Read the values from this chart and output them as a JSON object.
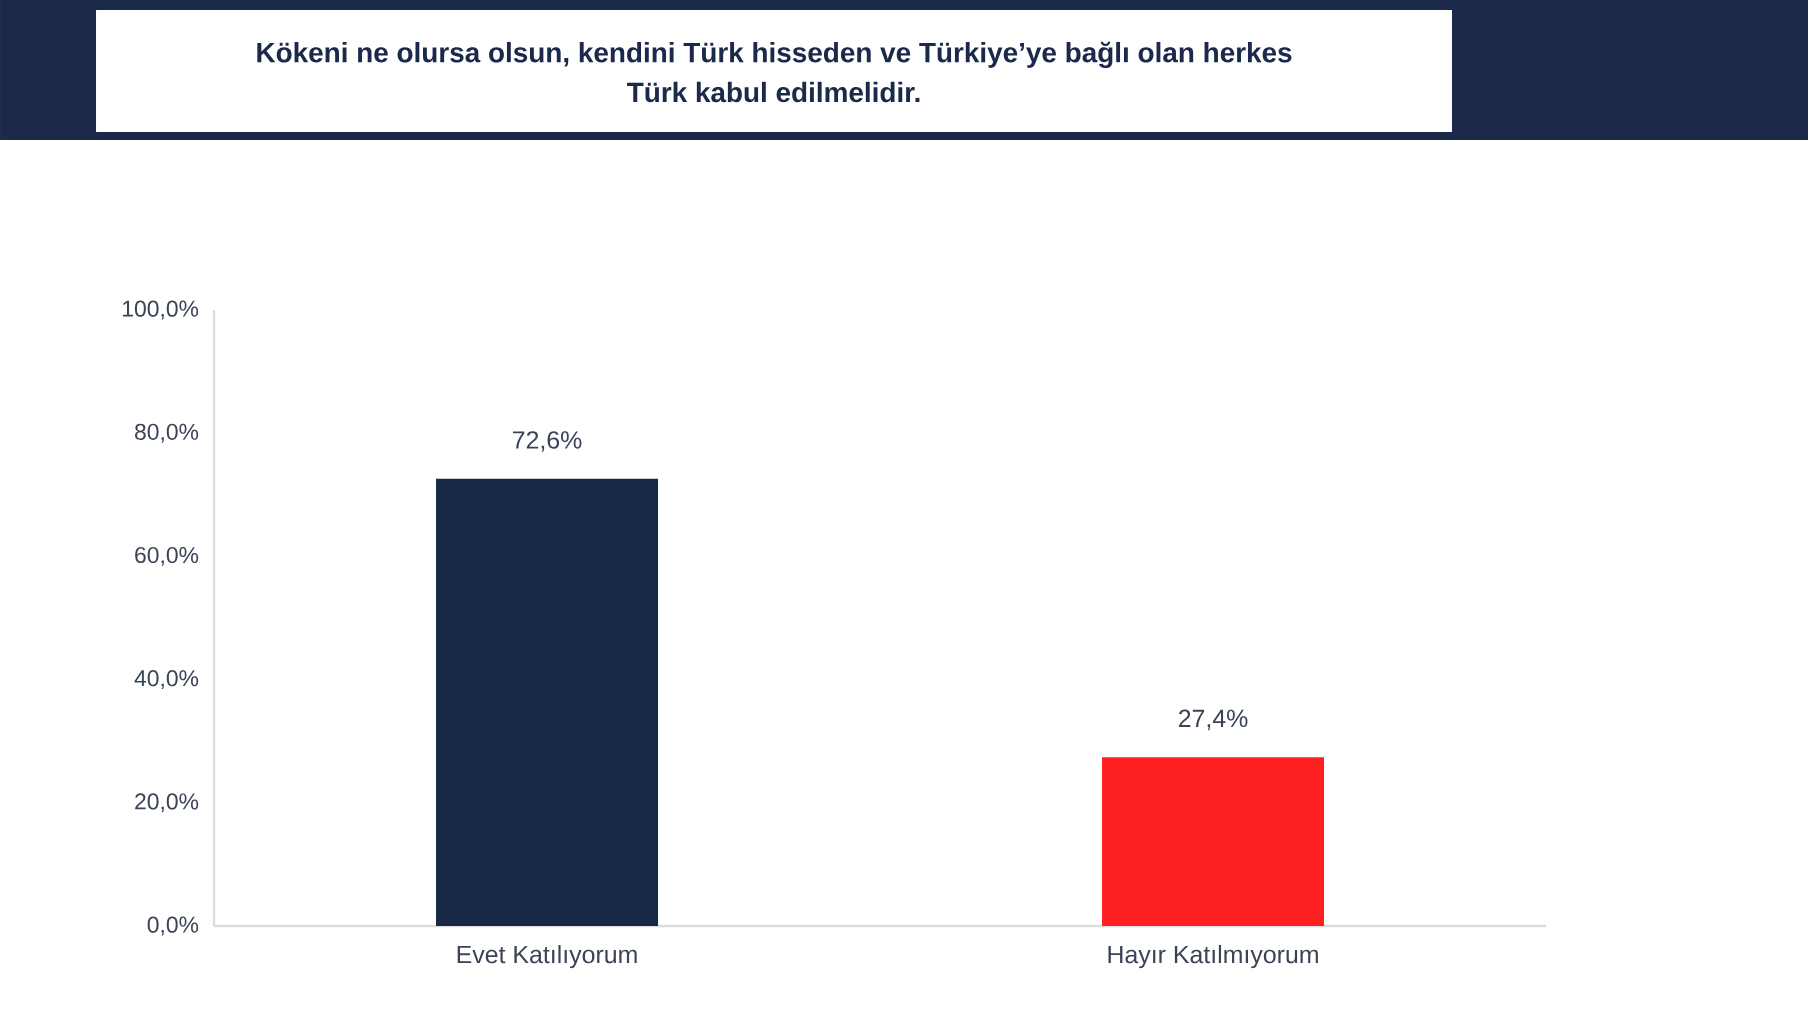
{
  "chart_data": {
    "type": "bar",
    "title": "Kökeni ne olursa olsun, kendini Türk hisseden ve Türkiye’ye bağlı olan herkes Türk kabul edilmelidir.",
    "categories": [
      "Evet Katılıyorum",
      "Hayır Katılmıyorum"
    ],
    "values": [
      72.6,
      27.4
    ],
    "colors": [
      "#172846",
      "#fe2021"
    ],
    "value_labels": [
      "72,6%",
      "27,4%"
    ],
    "ylim": [
      0,
      100
    ],
    "yticks": [
      {
        "value": 0,
        "label": "0,0%"
      },
      {
        "value": 20,
        "label": "20,0%"
      },
      {
        "value": 40,
        "label": "40,0%"
      },
      {
        "value": 60,
        "label": "60,0%"
      },
      {
        "value": 80,
        "label": "80,0%"
      },
      {
        "value": 100,
        "label": "100,0%"
      }
    ]
  }
}
